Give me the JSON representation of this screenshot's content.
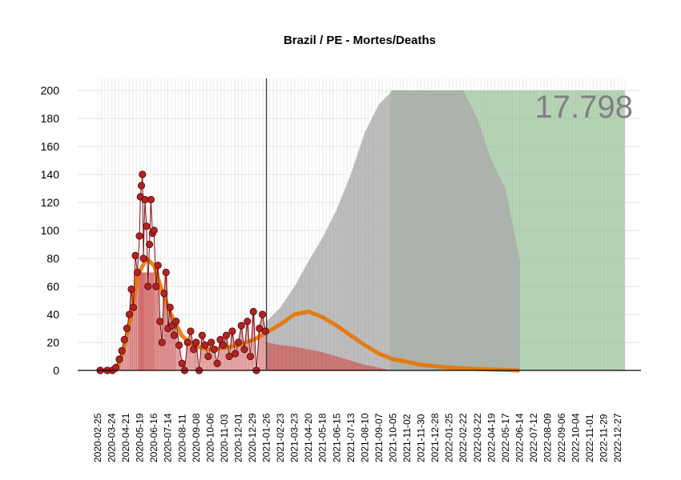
{
  "chart_data": {
    "type": "bar",
    "title": "Brazil / PE - Mortes/Deaths",
    "total_label": "17.798",
    "xlabel": "",
    "ylabel": "",
    "ylim": [
      0,
      200
    ],
    "x_range": [
      "2020-02-25",
      "2023-01-10"
    ],
    "grid": true,
    "y_ticks": [
      0,
      20,
      40,
      60,
      80,
      100,
      120,
      140,
      160,
      180,
      200
    ],
    "x_ticks": [
      "2020-02-25",
      "2020-03-24",
      "2020-04-21",
      "2020-05-19",
      "2020-06-16",
      "2020-07-14",
      "2020-08-11",
      "2020-09-08",
      "2020-10-06",
      "2020-11-03",
      "2020-12-01",
      "2020-12-29",
      "2021-01-26",
      "2021-02-23",
      "2021-03-23",
      "2021-04-20",
      "2021-05-18",
      "2021-06-15",
      "2021-07-13",
      "2021-08-10",
      "2021-09-07",
      "2021-10-05",
      "2021-11-02",
      "2021-11-30",
      "2021-12-28",
      "2022-01-25",
      "2022-02-22",
      "2022-03-22",
      "2022-04-19",
      "2022-05-17",
      "2022-06-14",
      "2022-07-12",
      "2022-08-09",
      "2022-09-06",
      "2022-10-04",
      "2022-11-01",
      "2022-11-29",
      "2022-12-27"
    ],
    "today": "2021-01-26",
    "series": [
      {
        "role": "observed-daily-deaths",
        "color": "#b22222",
        "points": [
          [
            "2020-03-01",
            0
          ],
          [
            "2020-03-15",
            0
          ],
          [
            "2020-03-25",
            0
          ],
          [
            "2020-04-01",
            2
          ],
          [
            "2020-04-08",
            8
          ],
          [
            "2020-04-13",
            14
          ],
          [
            "2020-04-18",
            22
          ],
          [
            "2020-04-23",
            30
          ],
          [
            "2020-04-28",
            40
          ],
          [
            "2020-05-02",
            58
          ],
          [
            "2020-05-06",
            45
          ],
          [
            "2020-05-10",
            82
          ],
          [
            "2020-05-14",
            70
          ],
          [
            "2020-05-18",
            96
          ],
          [
            "2020-05-20",
            124
          ],
          [
            "2020-05-22",
            132
          ],
          [
            "2020-05-24",
            140
          ],
          [
            "2020-05-26",
            80
          ],
          [
            "2020-05-29",
            122
          ],
          [
            "2020-06-01",
            103
          ],
          [
            "2020-06-04",
            60
          ],
          [
            "2020-06-07",
            90
          ],
          [
            "2020-06-10",
            122
          ],
          [
            "2020-06-13",
            98
          ],
          [
            "2020-06-16",
            100
          ],
          [
            "2020-06-20",
            60
          ],
          [
            "2020-06-24",
            75
          ],
          [
            "2020-06-28",
            35
          ],
          [
            "2020-07-02",
            20
          ],
          [
            "2020-07-06",
            55
          ],
          [
            "2020-07-10",
            70
          ],
          [
            "2020-07-14",
            30
          ],
          [
            "2020-07-18",
            45
          ],
          [
            "2020-07-22",
            32
          ],
          [
            "2020-07-26",
            25
          ],
          [
            "2020-07-30",
            35
          ],
          [
            "2020-08-05",
            18
          ],
          [
            "2020-08-11",
            5
          ],
          [
            "2020-08-16",
            0
          ],
          [
            "2020-08-22",
            20
          ],
          [
            "2020-08-28",
            28
          ],
          [
            "2020-09-03",
            15
          ],
          [
            "2020-09-08",
            20
          ],
          [
            "2020-09-14",
            0
          ],
          [
            "2020-09-20",
            25
          ],
          [
            "2020-09-26",
            18
          ],
          [
            "2020-10-02",
            10
          ],
          [
            "2020-10-08",
            20
          ],
          [
            "2020-10-14",
            15
          ],
          [
            "2020-10-20",
            5
          ],
          [
            "2020-10-26",
            22
          ],
          [
            "2020-11-01",
            18
          ],
          [
            "2020-11-07",
            25
          ],
          [
            "2020-11-13",
            10
          ],
          [
            "2020-11-19",
            28
          ],
          [
            "2020-11-25",
            12
          ],
          [
            "2020-12-01",
            20
          ],
          [
            "2020-12-07",
            32
          ],
          [
            "2020-12-13",
            15
          ],
          [
            "2020-12-19",
            35
          ],
          [
            "2020-12-25",
            10
          ],
          [
            "2020-12-31",
            42
          ],
          [
            "2021-01-06",
            0
          ],
          [
            "2021-01-12",
            30
          ],
          [
            "2021-01-18",
            40
          ],
          [
            "2021-01-24",
            28
          ]
        ]
      },
      {
        "role": "fitted-curve",
        "color": "#e87500",
        "points": [
          [
            "2020-03-01",
            0
          ],
          [
            "2020-04-01",
            0
          ],
          [
            "2020-04-15",
            12
          ],
          [
            "2020-05-01",
            38
          ],
          [
            "2020-05-15",
            68
          ],
          [
            "2020-06-01",
            80
          ],
          [
            "2020-06-16",
            75
          ],
          [
            "2020-07-01",
            58
          ],
          [
            "2020-07-20",
            40
          ],
          [
            "2020-08-10",
            25
          ],
          [
            "2020-09-01",
            18
          ],
          [
            "2020-10-01",
            15
          ],
          [
            "2020-11-01",
            16
          ],
          [
            "2020-12-01",
            18
          ],
          [
            "2021-01-01",
            22
          ],
          [
            "2021-01-26",
            27
          ],
          [
            "2021-02-23",
            33
          ],
          [
            "2021-03-23",
            40
          ],
          [
            "2021-04-20",
            42
          ],
          [
            "2021-05-18",
            38
          ],
          [
            "2021-06-15",
            32
          ],
          [
            "2021-07-13",
            25
          ],
          [
            "2021-08-10",
            18
          ],
          [
            "2021-09-07",
            12
          ],
          [
            "2021-10-05",
            8
          ],
          [
            "2021-11-02",
            6
          ],
          [
            "2021-11-30",
            4
          ],
          [
            "2021-12-28",
            3
          ],
          [
            "2022-01-25",
            2
          ],
          [
            "2022-03-22",
            1
          ],
          [
            "2022-06-14",
            0
          ]
        ]
      },
      {
        "role": "projection-lower-band",
        "color": "#cd5c5c",
        "points": [
          [
            "2021-01-26",
            20
          ],
          [
            "2021-02-23",
            18
          ],
          [
            "2021-03-23",
            17
          ],
          [
            "2021-04-20",
            15
          ],
          [
            "2021-05-18",
            13
          ],
          [
            "2021-06-15",
            10
          ],
          [
            "2021-07-13",
            7
          ],
          [
            "2021-08-10",
            4
          ],
          [
            "2021-09-07",
            2
          ],
          [
            "2021-09-30",
            0
          ]
        ]
      },
      {
        "role": "projection-upper-band",
        "color": "#a9a9a9",
        "points": [
          [
            "2021-01-26",
            35
          ],
          [
            "2021-02-23",
            45
          ],
          [
            "2021-03-23",
            60
          ],
          [
            "2021-04-20",
            78
          ],
          [
            "2021-05-18",
            95
          ],
          [
            "2021-06-15",
            115
          ],
          [
            "2021-07-13",
            140
          ],
          [
            "2021-08-10",
            170
          ],
          [
            "2021-09-07",
            190
          ],
          [
            "2021-10-05",
            200
          ],
          [
            "2022-02-22",
            200
          ],
          [
            "2022-03-22",
            180
          ],
          [
            "2022-04-19",
            150
          ],
          [
            "2022-05-17",
            130
          ],
          [
            "2022-06-14",
            80
          ]
        ]
      },
      {
        "role": "projection-area",
        "color": "#8fbc8f",
        "points": [
          [
            "2021-09-30",
            200
          ],
          [
            "2023-01-10",
            200
          ]
        ]
      }
    ]
  }
}
